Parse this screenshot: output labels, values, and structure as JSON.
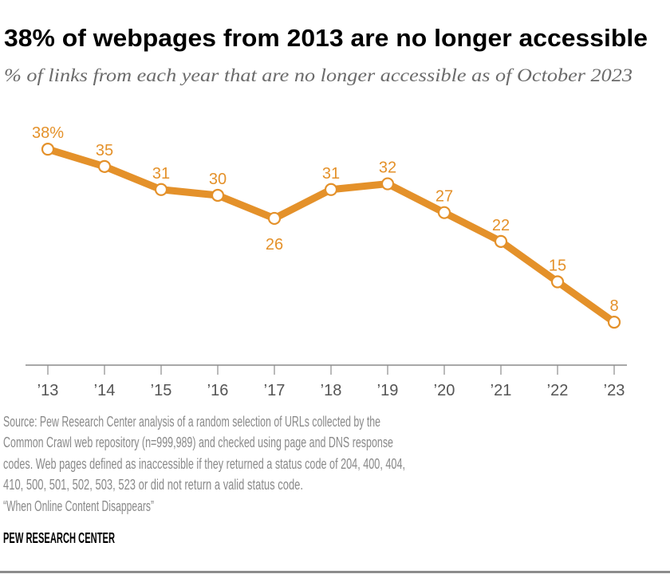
{
  "title": "38% of webpages from 2013 are no longer accessible",
  "subtitle": "% of links from each year that are no longer accessible as of October 2023",
  "notes": [
    "Source: Pew Research Center analysis of a random selection of URLs collected by the",
    "Common Crawl web repository (n=999,989) and checked using page and DNS response",
    "codes. Web pages defined as inaccessible if they returned a status code of 204, 400, 404,",
    "410, 500, 501, 502, 503, 523 or did not return a valid status code.",
    "“When Online Content Disappears”"
  ],
  "brand": "PEW RESEARCH CENTER",
  "colors": {
    "line": "#E4912A",
    "axis": "#8c8c8c",
    "rule": "#8c8c8c"
  },
  "chart_data": {
    "type": "line",
    "categories": [
      "’13",
      "’14",
      "’15",
      "’16",
      "’17",
      "’18",
      "’19",
      "’20",
      "’21",
      "’22",
      "’23"
    ],
    "values": [
      38,
      35,
      31,
      30,
      26,
      31,
      32,
      27,
      22,
      15,
      8
    ],
    "data_labels": [
      "38%",
      "35",
      "31",
      "30",
      "26",
      "31",
      "32",
      "27",
      "22",
      "15",
      "8"
    ],
    "label_positions": [
      "above",
      "above",
      "above",
      "above",
      "below",
      "above",
      "above",
      "above",
      "above",
      "above",
      "above"
    ],
    "ylim": [
      0,
      38
    ],
    "grid": false,
    "legend": "none",
    "xlabel": "",
    "ylabel": ""
  }
}
